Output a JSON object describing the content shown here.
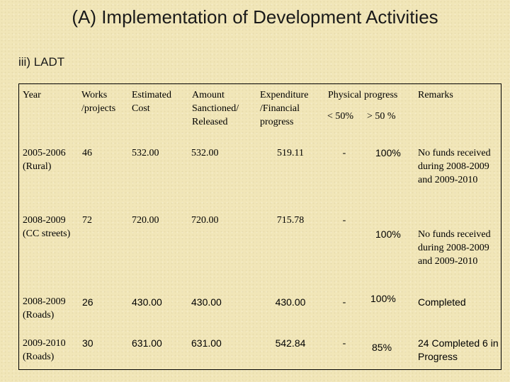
{
  "title": "(A)  Implementation of Development Activities",
  "subtitle": "iii)  LADT",
  "table": {
    "headers": {
      "year": "Year",
      "works": "Works /projects",
      "estimated": "Estimated Cost",
      "amount": "Amount Sanctioned/ Released",
      "expenditure": "Expenditure /Financial progress",
      "physical": "Physical progress",
      "lt50": "< 50%",
      "gt50": "> 50 %",
      "remarks": "Remarks"
    },
    "rows": [
      {
        "year": "2005-2006 (Rural)",
        "works": "46",
        "estimated": "532.00",
        "amount": "532.00",
        "expenditure": "519.11",
        "lt50": "-",
        "gt50": "100%",
        "remarks": "No funds received during 2008-2009 and 2009-2010"
      },
      {
        "year": "2008-2009 (CC streets)",
        "works": "72",
        "estimated": "720.00",
        "amount": "720.00",
        "expenditure": "715.78",
        "lt50": "-",
        "gt50": "100%",
        "remarks": "No funds received during 2008-2009 and 2009-2010"
      },
      {
        "year": "2008-2009 (Roads)",
        "works": "26",
        "estimated": "430.00",
        "amount": "430.00",
        "expenditure": "430.00",
        "lt50": "-",
        "gt50": "100%",
        "remarks": "Completed"
      },
      {
        "year": "2009-2010 (Roads)",
        "works": "30",
        "estimated": "631.00",
        "amount": "631.00",
        "expenditure": "542.84",
        "lt50": "-",
        "gt50": "85%",
        "remarks": "24 Completed 6 in Progress"
      }
    ]
  }
}
